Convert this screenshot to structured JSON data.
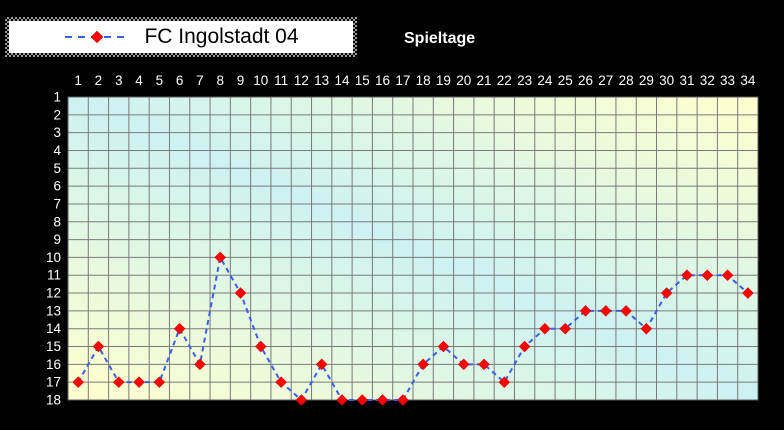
{
  "title": "Spieltage",
  "legend": {
    "label": "FC Ingolstadt 04"
  },
  "chart_data": {
    "type": "line",
    "title": "Spieltage",
    "series": [
      {
        "name": "FC Ingolstadt 04",
        "values": [
          17,
          15,
          17,
          17,
          17,
          14,
          16,
          10,
          12,
          15,
          17,
          18,
          16,
          18,
          18,
          18,
          18,
          16,
          15,
          16,
          16,
          17,
          15,
          14,
          14,
          13,
          13,
          13,
          14,
          12,
          11,
          11,
          11,
          12
        ]
      }
    ],
    "x": [
      1,
      2,
      3,
      4,
      5,
      6,
      7,
      8,
      9,
      10,
      11,
      12,
      13,
      14,
      15,
      16,
      17,
      18,
      19,
      20,
      21,
      22,
      23,
      24,
      25,
      26,
      27,
      28,
      29,
      30,
      31,
      32,
      33,
      34
    ],
    "y_ticks": [
      1,
      2,
      3,
      4,
      5,
      6,
      7,
      8,
      9,
      10,
      11,
      12,
      13,
      14,
      15,
      16,
      17,
      18
    ],
    "ylim": [
      1,
      18
    ],
    "y_axis_reversed": true,
    "grid": true,
    "legend_position": "top-left",
    "line_style": "dashed",
    "marker": "diamond",
    "style": {
      "outer_background": "#000000",
      "plot_gradient": [
        "#ffffcd",
        "#cdf2f2",
        "#ffffcd"
      ],
      "grid_color": "#7a7a7a",
      "border_color": "#606060",
      "line_color": "#3c5ee8",
      "marker_color": "#ff0000",
      "marker_outline": "#c00000",
      "label_color": "#ffffff"
    }
  }
}
